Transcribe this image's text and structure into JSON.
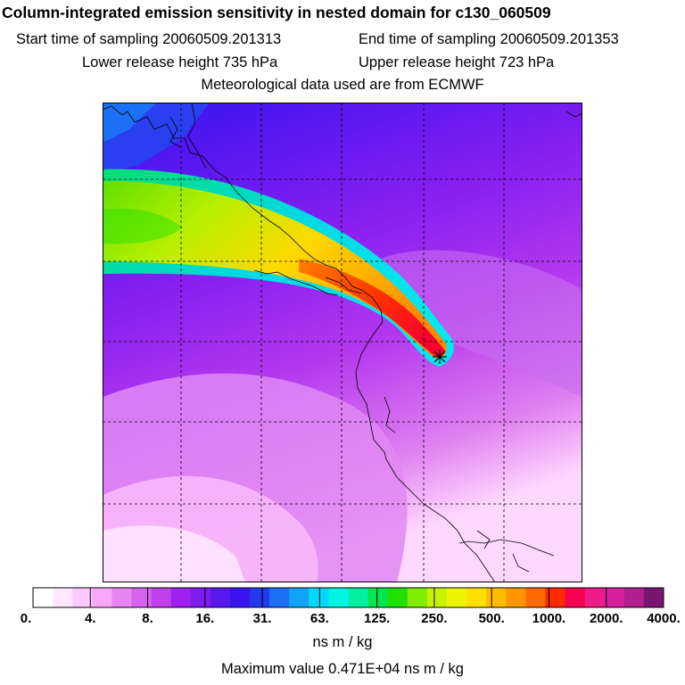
{
  "header": {
    "title": "Column-integrated emission sensitivity in nested domain for c130_060509",
    "start_label": "Start time of sampling 20060509.201313",
    "end_label": "End time of sampling 20060509.201353",
    "lower_label": "Lower release height  735 hPa",
    "upper_label": "Upper release height  723 hPa",
    "met_label": "Meteorological data used are from ECMWF"
  },
  "legend": {
    "colors": [
      "#ffffff",
      "#ffe8ff",
      "#ffc8ff",
      "#f8a8f8",
      "#e884f2",
      "#d662ee",
      "#c040ee",
      "#a020f0",
      "#7e1cf2",
      "#5a18f0",
      "#3a14ee",
      "#2438f0",
      "#1c70f6",
      "#10a4f8",
      "#00d8fa",
      "#00f6e0",
      "#00f0a0",
      "#00e650",
      "#20e000",
      "#80ec00",
      "#c8f200",
      "#eef400",
      "#ffe000",
      "#ffbc00",
      "#ff9600",
      "#ff6a00",
      "#ff2a00",
      "#f80050",
      "#ee1a8a",
      "#d6209e",
      "#b0208e",
      "#7a1670"
    ],
    "tick_labels": [
      "0.",
      "4.",
      "8.",
      "16.",
      "31.",
      "63.",
      "125.",
      "250.",
      "500.",
      "1000.",
      "2000.",
      "4000."
    ],
    "units": "ns m / kg",
    "max_value": "Maximum value  0.471E+04 ns m / kg"
  }
}
